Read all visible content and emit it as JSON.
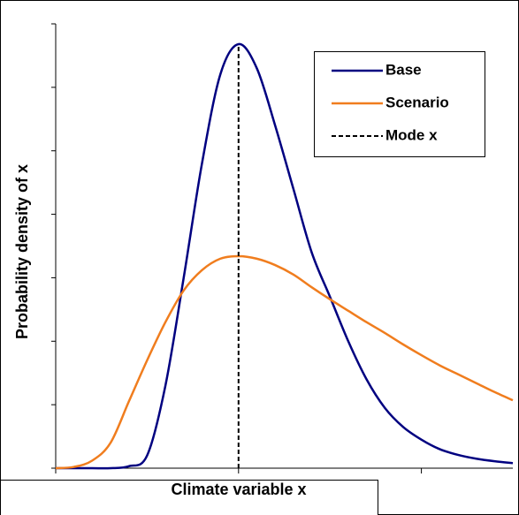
{
  "chart_data": {
    "type": "line",
    "xlabel": "Climate variable x",
    "ylabel": "Probability density of x",
    "x": [
      0,
      0.1,
      0.2,
      0.3,
      0.4,
      0.5,
      0.6,
      0.7,
      0.8,
      0.9,
      1.0,
      1.1,
      1.2,
      1.3,
      1.4,
      1.5,
      1.6,
      1.7,
      1.8,
      1.9,
      2.0,
      2.1,
      2.2,
      2.3,
      2.4,
      2.5
    ],
    "series": [
      {
        "name": "Base",
        "color": "#000080",
        "values": [
          0,
          0,
          0,
          0,
          0.03,
          0.2,
          1.3,
          3.0,
          4.8,
          6.2,
          6.68,
          6.3,
          5.4,
          4.4,
          3.4,
          2.7,
          2.0,
          1.4,
          0.95,
          0.65,
          0.45,
          0.3,
          0.21,
          0.15,
          0.11,
          0.08
        ]
      },
      {
        "name": "Scenario",
        "color": "#f07d1e",
        "values": [
          0,
          0.02,
          0.12,
          0.4,
          1.05,
          1.7,
          2.3,
          2.8,
          3.12,
          3.3,
          3.34,
          3.3,
          3.2,
          3.05,
          2.85,
          2.66,
          2.48,
          2.3,
          2.13,
          1.95,
          1.78,
          1.62,
          1.48,
          1.34,
          1.2,
          1.07
        ]
      }
    ],
    "vlines": [
      {
        "name": "Mode x",
        "x": 1,
        "color": "#000000"
      }
    ],
    "xlim": [
      0,
      2.5
    ],
    "xticks": [
      0,
      1,
      2
    ],
    "ylim": [
      0,
      7
    ],
    "yticks": [
      0,
      1,
      2,
      3,
      4,
      5,
      6,
      7
    ],
    "legend": "upper right"
  }
}
